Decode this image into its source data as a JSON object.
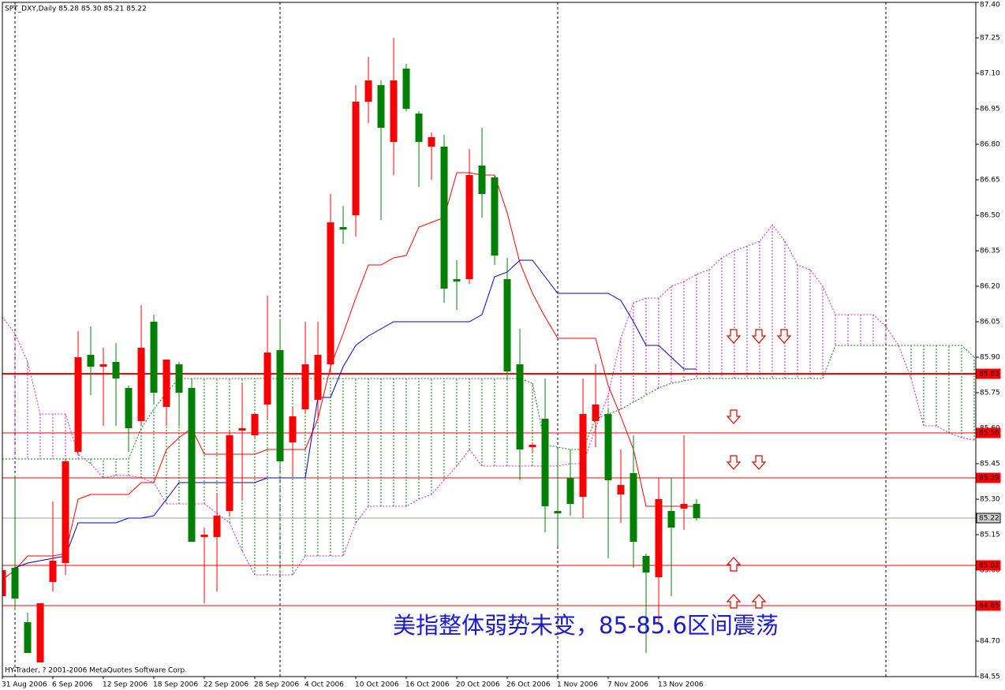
{
  "chart_data": {
    "type": "candlestick",
    "title": "SPT_DXY,Daily  85.28 85.30 85.21 85.22",
    "footer": "HY-Trader, ? 2001-2006 MetaQuotes Software Corp.",
    "annotation": "美指整体弱势未变，85-85.6区间震荡",
    "categories": [
      "31 Aug 2006",
      null,
      null,
      null,
      "6 Sep 2006",
      null,
      null,
      null,
      "12 Sep 2006",
      null,
      null,
      null,
      "18 Sep 2006",
      null,
      null,
      null,
      "22 Sep 2006",
      null,
      null,
      null,
      "28 Sep 2006",
      null,
      null,
      null,
      "4 Oct 2006",
      null,
      null,
      null,
      "10 Oct 2006",
      null,
      null,
      null,
      "16 Oct 2006",
      null,
      null,
      null,
      "20 Oct 2006",
      null,
      null,
      null,
      "26 Oct 2006",
      null,
      null,
      null,
      "1 Nov 2006",
      null,
      null,
      null,
      "7 Nov 2006",
      null,
      null,
      null,
      "13 Nov 2006",
      null,
      null,
      null
    ],
    "open": [
      84.89,
      85.01,
      84.78,
      84.61,
      84.95,
      85.03,
      85.5,
      85.91,
      85.86,
      85.88,
      85.77,
      85.63,
      86.05,
      85.69,
      85.87,
      85.77,
      85.14,
      85.14,
      85.25,
      85.59,
      85.57,
      85.7,
      85.93,
      85.54,
      85.68,
      85.72,
      85.87,
      86.45,
      86.5,
      86.98,
      87.05,
      86.81,
      87.12,
      86.93,
      86.79,
      86.79,
      86.23,
      86.23,
      86.71,
      86.66,
      86.23,
      85.87,
      85.52,
      85.64,
      85.25,
      85.39,
      85.31,
      85.63,
      85.66,
      85.32,
      85.41,
      85.06,
      84.97,
      85.25,
      85.26,
      85.28
    ],
    "high": [
      85.06,
      85.4,
      84.82,
      84.86,
      85.29,
      85.47,
      86.01,
      86.03,
      85.94,
      85.96,
      85.78,
      86.12,
      86.08,
      85.89,
      85.88,
      85.81,
      85.18,
      85.32,
      85.59,
      85.79,
      85.66,
      86.16,
      86.06,
      85.69,
      86.05,
      86.05,
      86.59,
      86.54,
      87.05,
      87.17,
      87.07,
      87.25,
      87.14,
      86.94,
      86.85,
      86.84,
      86.31,
      86.78,
      86.87,
      86.67,
      86.32,
      86.02,
      85.54,
      85.81,
      85.51,
      85.51,
      85.81,
      85.87,
      85.68,
      85.51,
      85.57,
      85.07,
      85.39,
      85.39,
      85.57,
      85.3
    ],
    "low": [
      84.74,
      84.83,
      84.65,
      84.61,
      84.91,
      84.98,
      85.49,
      85.74,
      85.61,
      85.61,
      85.5,
      85.61,
      85.7,
      85.61,
      85.61,
      85.12,
      84.86,
      84.91,
      85.23,
      85.3,
      85.56,
      85.64,
      85.44,
      85.4,
      85.66,
      85.64,
      85.83,
      86.38,
      86.41,
      86.89,
      86.48,
      86.67,
      86.94,
      86.62,
      86.65,
      86.13,
      86.1,
      86.21,
      86.49,
      86.29,
      85.8,
      85.38,
      85.5,
      85.16,
      85.1,
      85.23,
      85.22,
      85.52,
      85.05,
      85.2,
      85.01,
      84.65,
      84.78,
      84.89,
      85.17,
      85.21
    ],
    "close": [
      85.0,
      84.88,
      84.65,
      84.86,
      85.04,
      85.46,
      85.9,
      85.86,
      85.87,
      85.81,
      85.6,
      85.94,
      85.75,
      85.89,
      85.75,
      85.12,
      85.15,
      85.23,
      85.57,
      85.6,
      85.66,
      85.92,
      85.46,
      85.65,
      85.87,
      85.91,
      86.47,
      86.44,
      86.98,
      87.07,
      86.87,
      87.07,
      86.95,
      86.81,
      86.83,
      86.19,
      86.22,
      86.67,
      86.59,
      86.33,
      85.84,
      85.51,
      85.53,
      85.27,
      85.24,
      85.28,
      85.66,
      85.7,
      85.38,
      85.36,
      85.12,
      84.99,
      85.3,
      85.18,
      85.28,
      85.22
    ],
    "up_color": "#ff0000",
    "down_color": "#008000",
    "lines": [
      {
        "color": "#ff0000",
        "values": [
          84.96,
          85.0,
          85.06,
          85.06,
          85.06,
          85.07,
          85.3,
          85.32,
          85.32,
          85.32,
          85.32,
          85.37,
          85.37,
          85.51,
          85.56,
          85.6,
          85.49,
          85.49,
          85.49,
          85.49,
          85.49,
          85.51,
          85.51,
          85.51,
          85.51,
          85.64,
          85.86,
          86.0,
          86.15,
          86.29,
          86.29,
          86.32,
          86.33,
          86.45,
          86.47,
          86.49,
          86.68,
          86.68,
          86.67,
          86.67,
          86.51,
          86.3,
          86.17,
          86.07,
          85.98,
          85.98,
          85.98,
          85.98,
          85.78,
          85.65,
          85.51,
          85.27,
          85.27,
          85.27,
          85.27,
          85.27
        ]
      },
      {
        "color": "#0000cc",
        "values": [
          null,
          85.01,
          85.03,
          85.04,
          85.05,
          85.06,
          85.2,
          85.2,
          85.2,
          85.2,
          85.22,
          85.22,
          85.23,
          85.3,
          85.37,
          85.37,
          85.37,
          85.37,
          85.37,
          85.37,
          85.37,
          85.39,
          85.39,
          85.39,
          85.39,
          85.73,
          85.73,
          85.86,
          85.95,
          85.99,
          86.02,
          86.05,
          86.05,
          86.05,
          86.05,
          86.05,
          86.05,
          86.05,
          86.08,
          86.24,
          86.26,
          86.31,
          86.31,
          86.24,
          86.17,
          86.17,
          86.17,
          86.17,
          86.17,
          86.14,
          86.05,
          85.95,
          85.95,
          85.9,
          85.85,
          85.85
        ]
      }
    ],
    "cloud": {
      "colors": [
        "#d020d0",
        "#008000"
      ],
      "span_a": [
        86.07,
        86.0,
        85.88,
        85.66,
        85.66,
        85.66,
        85.49,
        85.45,
        85.39,
        85.4,
        85.4,
        85.39,
        85.37,
        85.28,
        85.28,
        85.28,
        85.28,
        85.24,
        85.2,
        85.08,
        84.98,
        84.98,
        84.98,
        84.98,
        85.06,
        85.06,
        85.06,
        85.06,
        85.2,
        85.27,
        85.27,
        85.27,
        85.27,
        85.3,
        85.32,
        85.38,
        85.44,
        85.51,
        85.44,
        85.44,
        85.44,
        85.44,
        85.44,
        85.44,
        85.44,
        85.45,
        85.45,
        85.6,
        85.74,
        85.98,
        86.13,
        86.15,
        86.15,
        86.2,
        86.22,
        86.25,
        86.27,
        86.32,
        86.35,
        86.37,
        86.39,
        86.46,
        86.39,
        86.29,
        86.27,
        86.2,
        86.08,
        86.08,
        86.08,
        86.08,
        86.03,
        85.95,
        85.81,
        85.61,
        85.61,
        85.58,
        85.56,
        85.55
      ],
      "span_b": [
        85.47,
        85.47,
        85.47,
        85.47,
        85.47,
        85.47,
        85.47,
        85.47,
        85.47,
        85.47,
        85.47,
        85.6,
        85.68,
        85.75,
        85.81,
        85.81,
        85.81,
        85.81,
        85.81,
        85.81,
        85.81,
        85.81,
        85.81,
        85.81,
        85.81,
        85.81,
        85.81,
        85.81,
        85.81,
        85.81,
        85.81,
        85.81,
        85.81,
        85.81,
        85.81,
        85.81,
        85.81,
        85.81,
        85.81,
        85.81,
        85.81,
        85.81,
        85.79,
        85.53,
        85.52,
        85.51,
        85.51,
        85.64,
        85.66,
        85.68,
        85.71,
        85.74,
        85.77,
        85.79,
        85.8,
        85.81,
        85.81,
        85.81,
        85.81,
        85.81,
        85.81,
        85.81,
        85.81,
        85.81,
        85.81,
        85.81,
        85.95,
        85.95,
        85.95,
        85.95,
        85.95,
        85.95,
        85.95,
        85.95,
        85.95,
        85.95,
        85.95,
        85.9
      ]
    },
    "levels": [
      {
        "value": 85.83,
        "color": "#ff0000",
        "width": 2
      },
      {
        "value": 85.58,
        "color": "#ff0000",
        "width": 1
      },
      {
        "value": 85.39,
        "color": "#ff0000",
        "width": 1
      },
      {
        "value": 85.22,
        "color": "#8aa88a",
        "width": 1
      },
      {
        "value": 85.02,
        "color": "#ff0000",
        "width": 1
      },
      {
        "value": 84.85,
        "color": "#ff0000",
        "width": 1
      }
    ],
    "ylim": [
      84.55,
      87.4
    ],
    "yticks": [
      {
        "value": 87.4,
        "label": "87.40"
      },
      87.25,
      {
        "value": 87.1,
        "label": "87.10"
      },
      86.95,
      {
        "value": 86.8,
        "label": "86.80"
      },
      86.65,
      {
        "value": 86.5,
        "label": "86.50"
      },
      86.35,
      {
        "value": 86.2,
        "label": "86.20"
      },
      86.05,
      {
        "value": 85.9,
        "label": "85.90"
      },
      85.75,
      {
        "value": 85.6,
        "label": "85.60"
      },
      85.45,
      {
        "value": 85.3,
        "label": "85.30"
      },
      85.15,
      {
        "value": 85.0,
        "label": "85.00"
      },
      84.85,
      {
        "value": 84.7,
        "label": "84.70"
      },
      84.55
    ]
  }
}
